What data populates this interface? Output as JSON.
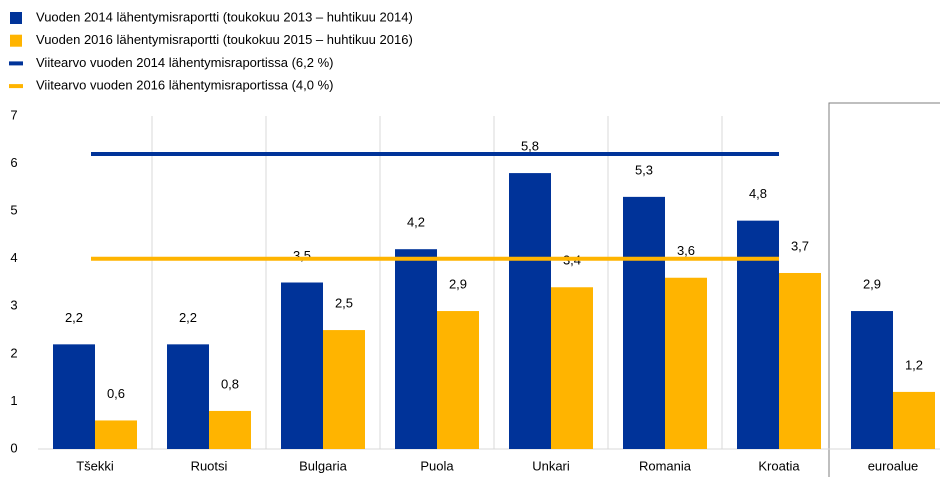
{
  "chart_data": {
    "type": "bar",
    "categories": [
      "Tšekki",
      "Ruotsi",
      "Bulgaria",
      "Puola",
      "Unkari",
      "Romania",
      "Kroatia",
      "euroalue"
    ],
    "series": [
      {
        "name": "Vuoden 2014 lähentymisraportti (toukokuu 2013 – huhtikuu 2014)",
        "color": "#003399",
        "values": [
          2.2,
          2.2,
          3.5,
          4.2,
          5.8,
          5.3,
          4.8,
          2.9
        ],
        "value_labels": [
          "2,2",
          "2,2",
          "3,5",
          "4,2",
          "5,8",
          "5,3",
          "4,8",
          "2,9"
        ]
      },
      {
        "name": "Vuoden 2016 lähentymisraportti (toukokuu 2015 – huhtikuu 2016)",
        "color": "#ffb400",
        "values": [
          0.6,
          0.8,
          2.5,
          2.9,
          3.4,
          3.6,
          3.7,
          1.2
        ],
        "value_labels": [
          "0,6",
          "0,8",
          "2,5",
          "2,9",
          "3,4",
          "3,6",
          "3,7",
          "1,2"
        ]
      }
    ],
    "reference_lines": [
      {
        "name": "Viitearvo vuoden 2014 lähentymisraportissa (6,2 %)",
        "color": "#003399",
        "value": 6.2
      },
      {
        "name": "Viitearvo vuoden 2016 lähentymisraportissa (4,0 %)",
        "color": "#ffb400",
        "value": 4.0
      }
    ],
    "ylim": [
      0,
      7
    ],
    "yticks": [
      0,
      1,
      2,
      3,
      4,
      5,
      6,
      7
    ],
    "grid": "vertical"
  }
}
